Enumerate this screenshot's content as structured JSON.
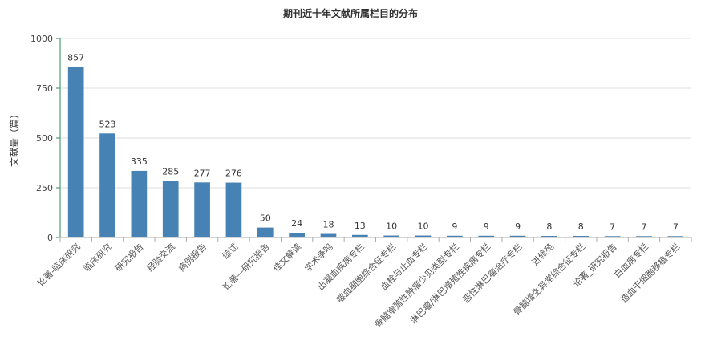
{
  "chart_data": {
    "type": "bar",
    "title": "期刊近十年文献所属栏目的分布",
    "ylabel": "文献量（篇）",
    "xlabel": "",
    "ylim": [
      0,
      1000
    ],
    "yticks": [
      0,
      250,
      500,
      750,
      1000
    ],
    "grid": true,
    "color": "#4682b4",
    "categories": [
      "论著-临床研究",
      "临床研究",
      "研究报告",
      "经验交流",
      "病例报告",
      "综述",
      "论著—研究报告",
      "佳文解读",
      "学术争鸣",
      "出凝血疾病专栏",
      "噬血细胞综合征专栏",
      "血栓与止血专栏",
      "骨髓增殖性肿瘤少见类型专栏",
      "淋巴瘤/淋巴增殖性疾病专栏",
      "恶性淋巴瘤治疗专栏",
      "进修苑",
      "骨髓增生异常综合征专栏",
      "论著_研究报告",
      "白血病专栏",
      "造血干细胞移植专栏"
    ],
    "values": [
      857,
      523,
      335,
      285,
      277,
      276,
      50,
      24,
      18,
      13,
      10,
      10,
      9,
      9,
      9,
      8,
      8,
      7,
      7,
      7
    ]
  }
}
